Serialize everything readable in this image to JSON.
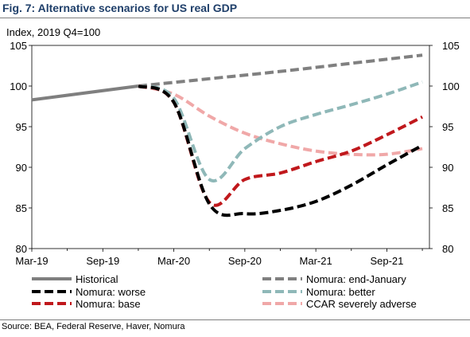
{
  "figure": {
    "title": "Fig. 7: Alternative scenarios for US real GDP",
    "source": "Source: BEA, Federal Reserve, Haver, Nomura"
  },
  "chart_data": {
    "type": "line",
    "ylabel": "Index, 2019 Q4=100",
    "ylim": [
      80,
      105
    ],
    "y_ticks": [
      80,
      85,
      90,
      95,
      100,
      105
    ],
    "x_ticks": [
      "Mar-19",
      "Sep-19",
      "Mar-20",
      "Sep-20",
      "Mar-21",
      "Sep-21"
    ],
    "x_tick_pos": [
      0,
      2,
      4,
      6,
      8,
      10
    ],
    "xlim": [
      0,
      11.2
    ],
    "grid": false,
    "legend_placement": "bottom",
    "series": [
      {
        "name": "Historical",
        "color": "#7f7f7f",
        "dash": "solid",
        "width": 4,
        "x": [
          0,
          3
        ],
        "y": [
          98.3,
          100.0
        ]
      },
      {
        "name": "Nomura: end-January",
        "color": "#808080",
        "dash": "dash",
        "width": 4,
        "x": [
          3,
          5,
          7,
          9,
          11
        ],
        "y": [
          100.0,
          100.9,
          101.8,
          102.8,
          103.8
        ]
      },
      {
        "name": "Nomura: worse",
        "color": "#000000",
        "dash": "dash",
        "width": 4,
        "x": [
          3,
          4,
          5,
          6,
          7,
          8,
          9,
          10,
          11
        ],
        "y": [
          100.0,
          98.0,
          85.5,
          84.3,
          84.7,
          85.8,
          87.8,
          90.3,
          92.7
        ]
      },
      {
        "name": "Nomura: better",
        "color": "#8fb8b8",
        "dash": "dash",
        "width": 4,
        "x": [
          3,
          4,
          5,
          6,
          7,
          8,
          9,
          10,
          11
        ],
        "y": [
          100.0,
          98.5,
          88.5,
          92.3,
          95.0,
          96.5,
          97.7,
          99.0,
          100.5
        ]
      },
      {
        "name": "Nomura: base",
        "color": "#c0181c",
        "dash": "dash",
        "width": 4,
        "x": [
          3,
          4,
          5,
          6,
          7,
          8,
          9,
          10,
          11
        ],
        "y": [
          100.0,
          98.0,
          85.7,
          88.5,
          89.3,
          90.7,
          92.0,
          94.0,
          96.2
        ]
      },
      {
        "name": "CCAR severely adverse",
        "color": "#f0a8a8",
        "dash": "dash",
        "width": 4,
        "x": [
          3,
          4,
          5,
          6,
          7,
          8,
          9,
          10,
          11
        ],
        "y": [
          100.0,
          99.0,
          96.3,
          94.2,
          92.9,
          92.0,
          91.6,
          91.6,
          92.3
        ]
      }
    ],
    "legend_rows": [
      [
        "Historical",
        "Nomura: end-January"
      ],
      [
        "Nomura: worse",
        "Nomura: better"
      ],
      [
        "Nomura: base",
        "CCAR severely adverse"
      ]
    ]
  }
}
